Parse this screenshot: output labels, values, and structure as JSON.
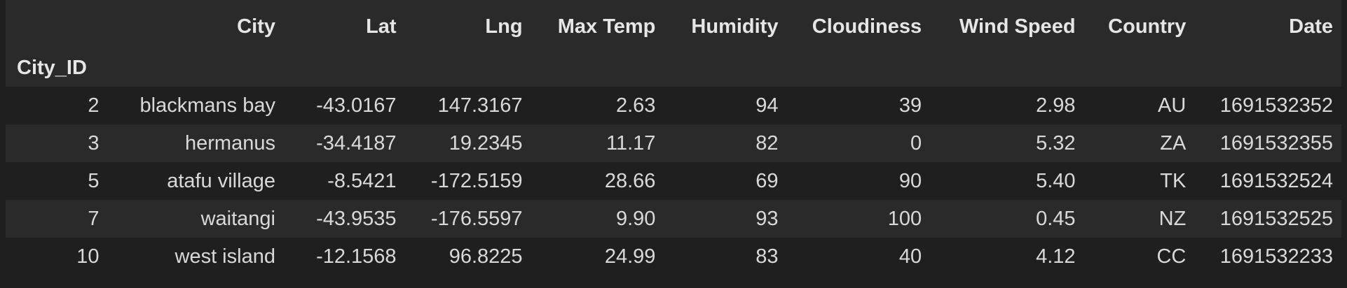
{
  "table": {
    "index_name": "City_ID",
    "columns": [
      "City",
      "Lat",
      "Lng",
      "Max Temp",
      "Humidity",
      "Cloudiness",
      "Wind Speed",
      "Country",
      "Date"
    ],
    "rows": [
      {
        "id": "2",
        "cells": [
          "blackmans bay",
          "-43.0167",
          "147.3167",
          "2.63",
          "94",
          "39",
          "2.98",
          "AU",
          "1691532352"
        ]
      },
      {
        "id": "3",
        "cells": [
          "hermanus",
          "-34.4187",
          "19.2345",
          "11.17",
          "82",
          "0",
          "5.32",
          "ZA",
          "1691532355"
        ]
      },
      {
        "id": "5",
        "cells": [
          "atafu village",
          "-8.5421",
          "-172.5159",
          "28.66",
          "69",
          "90",
          "5.40",
          "TK",
          "1691532524"
        ]
      },
      {
        "id": "7",
        "cells": [
          "waitangi",
          "-43.9535",
          "-176.5597",
          "9.90",
          "93",
          "100",
          "0.45",
          "NZ",
          "1691532525"
        ]
      },
      {
        "id": "10",
        "cells": [
          "west island",
          "-12.1568",
          "96.8225",
          "24.99",
          "83",
          "40",
          "4.12",
          "CC",
          "1691532233"
        ]
      }
    ]
  },
  "colors": {
    "background": "#1f1f1f",
    "stripe": "#2a2a2a",
    "text": "#d9d9d9",
    "header_text": "#e6e6e6"
  }
}
